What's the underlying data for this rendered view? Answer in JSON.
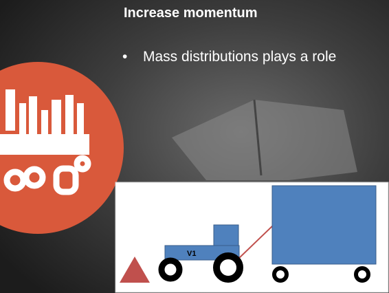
{
  "slide": {
    "title": "Increase momentum",
    "bullets": [
      "Mass distributions plays a role"
    ],
    "diagram": {
      "vehicle_label": "V1"
    }
  }
}
